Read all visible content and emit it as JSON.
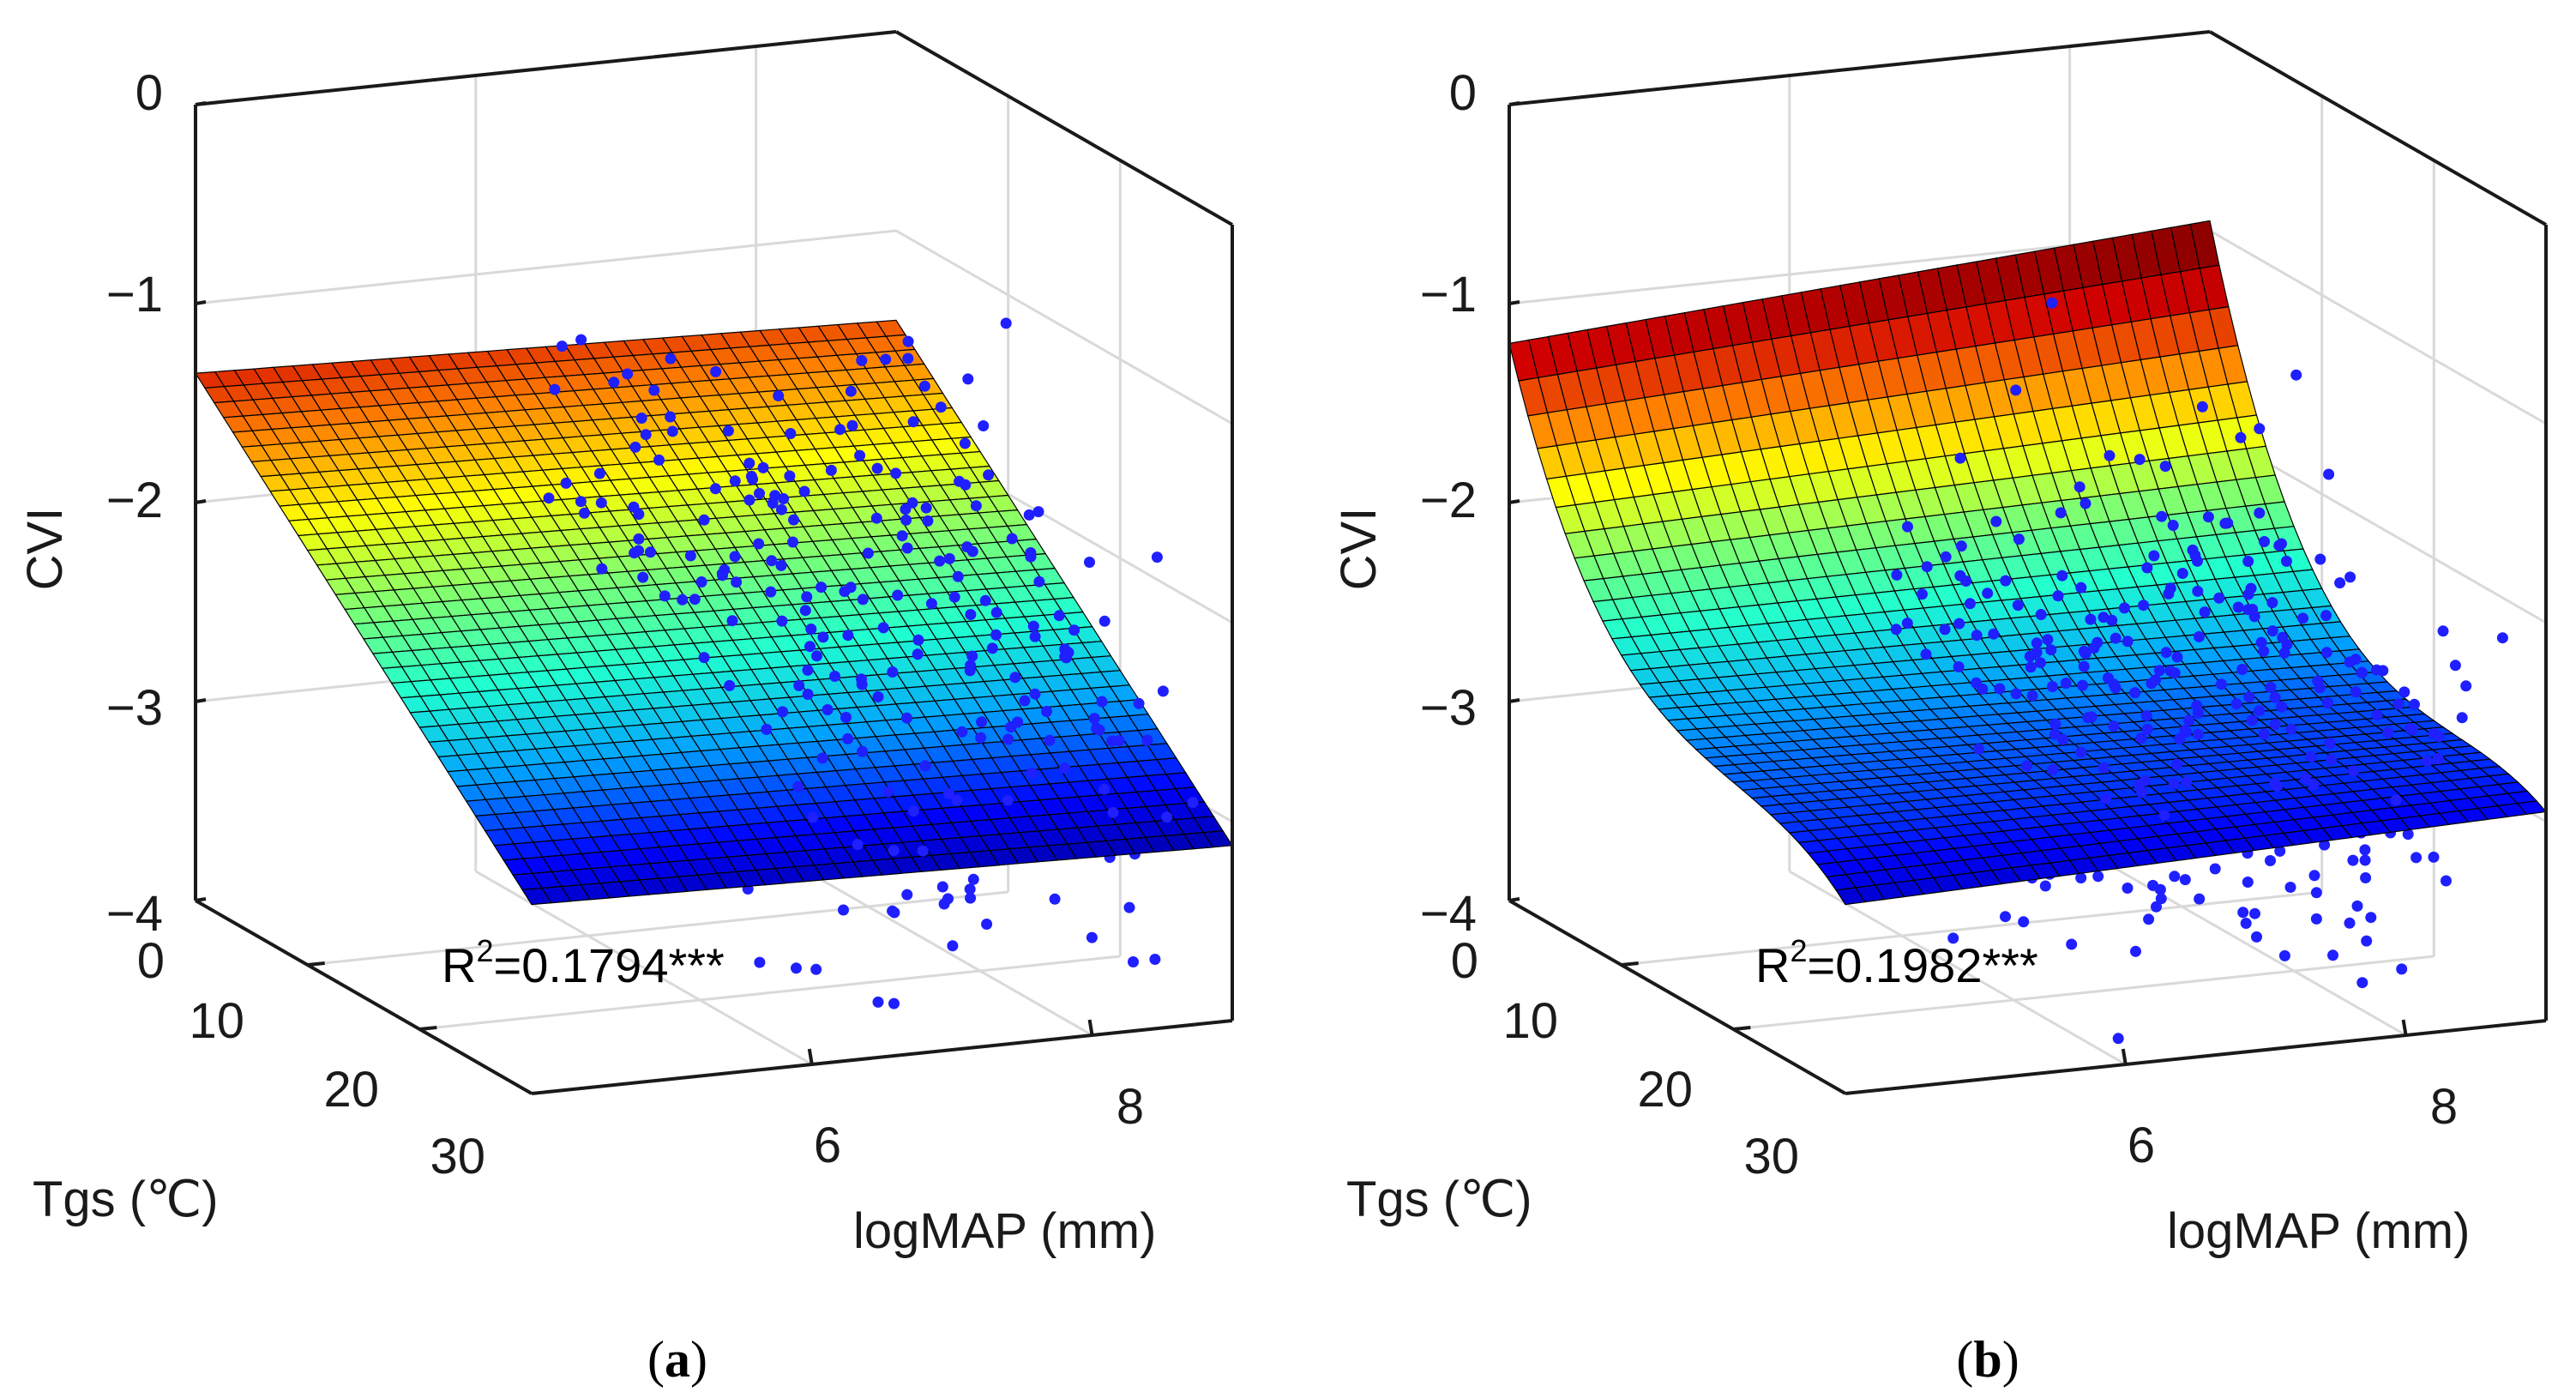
{
  "colors": {
    "point": "#1f1fff",
    "frame": "#1a1a1a",
    "grid": "#d9d9d9",
    "mesh": "#000000",
    "colormap": [
      "#00008f",
      "#0000ff",
      "#00a0ff",
      "#20ffd0",
      "#80ff70",
      "#ffff00",
      "#ff8000",
      "#d00000",
      "#7f0000"
    ]
  },
  "chart_data": [
    {
      "type": "surface3d",
      "panel": "(a)",
      "caption": {
        "open": "(",
        "letter": "a",
        "close": ")"
      },
      "fit": "linear",
      "zlabel": "CVI",
      "xlabel": "Tgs (℃)",
      "ylabel": "logMAP (mm)",
      "zlim": [
        -4,
        0
      ],
      "zticks": [
        "−4",
        "−3",
        "−2",
        "−1",
        "0"
      ],
      "xticks": [
        "0",
        "10",
        "20",
        "30"
      ],
      "yticks": [
        "6",
        "8"
      ],
      "annotation": {
        "base": "R",
        "sup": "2",
        "rest": "=0.1794***"
      },
      "surface_corners": {
        "tgs0_map_low": -1.35,
        "tgs0_map_high": -1.45,
        "tgs30_map_low": -3.05,
        "tgs30_map_high": -3.12
      },
      "points_count": 420
    },
    {
      "type": "surface3d",
      "panel": "(b)",
      "caption": {
        "open": "(",
        "letter": "b",
        "close": ")"
      },
      "fit": "quadratic",
      "zlabel": "CVI",
      "xlabel": "Tgs (℃)",
      "ylabel": "logMAP (mm)",
      "zlim": [
        -4,
        0
      ],
      "zticks": [
        "−4",
        "−3",
        "−2",
        "−1",
        "0"
      ],
      "xticks": [
        "0",
        "10",
        "20",
        "30"
      ],
      "yticks": [
        "6",
        "8"
      ],
      "annotation": {
        "base": "R",
        "sup": "2",
        "rest": "=0.1982***"
      },
      "surface_corners": {
        "tgs0_map_low": -1.2,
        "tgs0_map_high": -0.95,
        "tgs30_map_low": -3.05,
        "tgs30_map_high": -2.95,
        "min_mid": -3.1
      },
      "points_count": 420
    }
  ]
}
